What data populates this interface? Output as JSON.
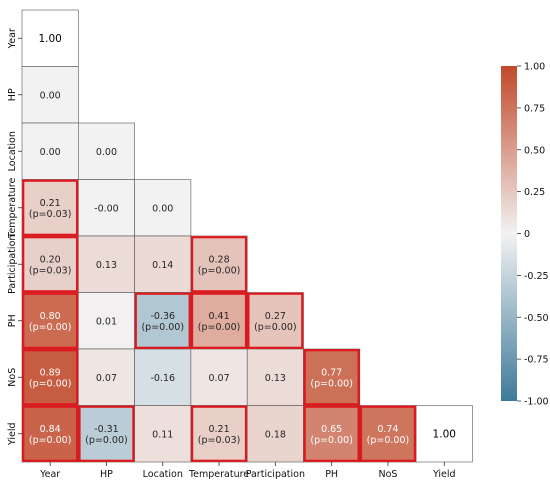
{
  "chart_data": {
    "type": "heatmap",
    "variables": [
      "Year",
      "HP",
      "Location",
      "Temperature",
      "Participation",
      "PH",
      "NoS",
      "Yield"
    ],
    "cells": [
      {
        "row": "Year",
        "col": "Year",
        "value": 1.0,
        "label": "1.00",
        "p": "",
        "highlight": false
      },
      {
        "row": "HP",
        "col": "Year",
        "value": 0.0,
        "label": "0.00",
        "p": "",
        "highlight": false
      },
      {
        "row": "Location",
        "col": "Year",
        "value": 0.0,
        "label": "0.00",
        "p": "",
        "highlight": false
      },
      {
        "row": "Location",
        "col": "HP",
        "value": 0.0,
        "label": "0.00",
        "p": "",
        "highlight": false
      },
      {
        "row": "Temperature",
        "col": "Year",
        "value": 0.21,
        "label": "0.21",
        "p": "(p=0.03)",
        "highlight": true
      },
      {
        "row": "Temperature",
        "col": "HP",
        "value": -0.0,
        "label": "-0.00",
        "p": "",
        "highlight": false
      },
      {
        "row": "Temperature",
        "col": "Location",
        "value": 0.0,
        "label": "0.00",
        "p": "",
        "highlight": false
      },
      {
        "row": "Participation",
        "col": "Year",
        "value": 0.2,
        "label": "0.20",
        "p": "(p=0.03)",
        "highlight": true
      },
      {
        "row": "Participation",
        "col": "HP",
        "value": 0.13,
        "label": "0.13",
        "p": "",
        "highlight": false
      },
      {
        "row": "Participation",
        "col": "Location",
        "value": 0.14,
        "label": "0.14",
        "p": "",
        "highlight": false
      },
      {
        "row": "Participation",
        "col": "Temperature",
        "value": 0.28,
        "label": "0.28",
        "p": "(p=0.00)",
        "highlight": true
      },
      {
        "row": "PH",
        "col": "Year",
        "value": 0.8,
        "label": "0.80",
        "p": "(p=0.00)",
        "highlight": true
      },
      {
        "row": "PH",
        "col": "HP",
        "value": 0.01,
        "label": "0.01",
        "p": "",
        "highlight": false
      },
      {
        "row": "PH",
        "col": "Location",
        "value": -0.36,
        "label": "-0.36",
        "p": "(p=0.00)",
        "highlight": true
      },
      {
        "row": "PH",
        "col": "Temperature",
        "value": 0.41,
        "label": "0.41",
        "p": "(p=0.00)",
        "highlight": true
      },
      {
        "row": "PH",
        "col": "Participation",
        "value": 0.27,
        "label": "0.27",
        "p": "(p=0.00)",
        "highlight": true
      },
      {
        "row": "NoS",
        "col": "Year",
        "value": 0.89,
        "label": "0.89",
        "p": "(p=0.00)",
        "highlight": true
      },
      {
        "row": "NoS",
        "col": "HP",
        "value": 0.07,
        "label": "0.07",
        "p": "",
        "highlight": false
      },
      {
        "row": "NoS",
        "col": "Location",
        "value": -0.16,
        "label": "-0.16",
        "p": "",
        "highlight": false
      },
      {
        "row": "NoS",
        "col": "Temperature",
        "value": 0.07,
        "label": "0.07",
        "p": "",
        "highlight": false
      },
      {
        "row": "NoS",
        "col": "Participation",
        "value": 0.13,
        "label": "0.13",
        "p": "",
        "highlight": false
      },
      {
        "row": "NoS",
        "col": "PH",
        "value": 0.77,
        "label": "0.77",
        "p": "(p=0.00)",
        "highlight": true
      },
      {
        "row": "Yield",
        "col": "Year",
        "value": 0.84,
        "label": "0.84",
        "p": "(p=0.00)",
        "highlight": true
      },
      {
        "row": "Yield",
        "col": "HP",
        "value": -0.31,
        "label": "-0.31",
        "p": "(p=0.00)",
        "highlight": true
      },
      {
        "row": "Yield",
        "col": "Location",
        "value": 0.11,
        "label": "0.11",
        "p": "",
        "highlight": false
      },
      {
        "row": "Yield",
        "col": "Temperature",
        "value": 0.21,
        "label": "0.21",
        "p": "(p=0.03)",
        "highlight": true
      },
      {
        "row": "Yield",
        "col": "Participation",
        "value": 0.18,
        "label": "0.18",
        "p": "",
        "highlight": false
      },
      {
        "row": "Yield",
        "col": "PH",
        "value": 0.65,
        "label": "0.65",
        "p": "(p=0.00)",
        "highlight": true
      },
      {
        "row": "Yield",
        "col": "NoS",
        "value": 0.74,
        "label": "0.74",
        "p": "(p=0.00)",
        "highlight": true
      },
      {
        "row": "Yield",
        "col": "Yield",
        "value": 1.0,
        "label": "1.00",
        "p": "",
        "highlight": false
      }
    ],
    "colorbar": {
      "min": -1.0,
      "max": 1.0,
      "ticks": [
        1.0,
        0.75,
        0.5,
        0.25,
        0,
        -0.25,
        -0.5,
        -0.75,
        -1.0
      ],
      "tick_labels": [
        "1.00",
        "0.75",
        "0.50",
        "0.25",
        "0",
        "-0.25",
        "-0.50",
        "-0.75",
        "-1.00"
      ],
      "neg_color": "#3d7a9a",
      "mid_color": "#f2f2f2",
      "pos_color": "#c1492a"
    },
    "diagonal_color": "#ffffff",
    "highlight_color": "#e0181d"
  }
}
